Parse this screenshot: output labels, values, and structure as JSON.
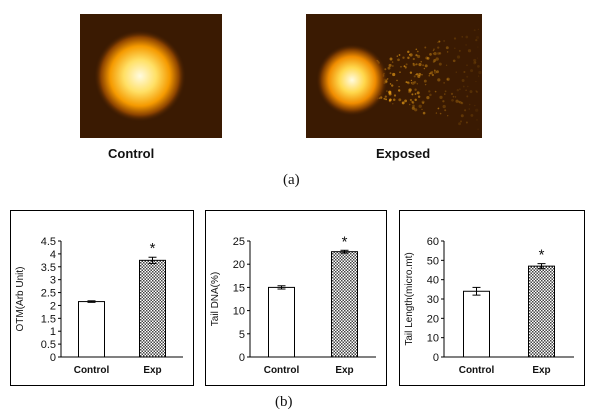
{
  "figure": {
    "panel_a_label": "(a)",
    "panel_b_label": "(b)",
    "images": [
      {
        "label": "Control",
        "description_icon": "comet-assay-control-icon"
      },
      {
        "label": "Exposed",
        "description_icon": "comet-assay-exposed-icon"
      }
    ]
  },
  "chart_data": [
    {
      "type": "bar",
      "ylabel": "OTM(Arb Unit)",
      "categories": [
        "Control",
        "Exp"
      ],
      "values": [
        2.15,
        3.75
      ],
      "errors": [
        0.03,
        0.12
      ],
      "ylim": [
        0,
        4.5
      ],
      "yticks": [
        "0",
        "0.5",
        "1",
        "1.5",
        "2",
        "2.5",
        "3",
        "3.5",
        "4",
        "4.5"
      ],
      "annotations": [
        "",
        "*"
      ]
    },
    {
      "type": "bar",
      "ylabel": "Tail DNA(%)",
      "categories": [
        "Control",
        "Exp"
      ],
      "values": [
        15,
        22.7
      ],
      "errors": [
        0.35,
        0.3
      ],
      "ylim": [
        0,
        25
      ],
      "yticks": [
        "0",
        "5",
        "10",
        "15",
        "20",
        "25"
      ],
      "annotations": [
        "",
        "*"
      ]
    },
    {
      "type": "bar",
      "ylabel": "Tail Length(micro.mt)",
      "categories": [
        "Control",
        "Exp"
      ],
      "values": [
        34,
        47
      ],
      "errors": [
        2,
        1.3
      ],
      "ylim": [
        0,
        60
      ],
      "yticks": [
        "0",
        "10",
        "20",
        "30",
        "40",
        "50",
        "60"
      ],
      "annotations": [
        "",
        "*"
      ]
    }
  ],
  "colors": {
    "control_fill": "#ffffff",
    "exp_fill_pattern": "#444444",
    "comet_core": "#fff3a0",
    "comet_mid": "#ffb000",
    "background": "#3a1a02"
  }
}
